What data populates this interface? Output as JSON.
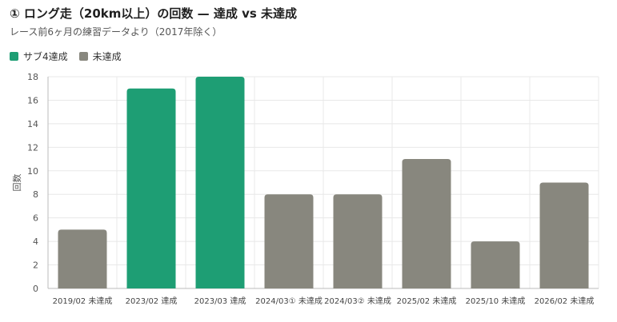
{
  "title": "① ロング走（20km以上）の回数 — 達成 vs 未達成",
  "subtitle": "レース前6ヶ月の練習データより（2017年除く）",
  "colors": {
    "achieved": "#1e9e74",
    "not_achieved": "#88877e",
    "grid": "#e8e8e8",
    "axis": "#bbbbbb"
  },
  "chart_data": {
    "type": "bar",
    "ylabel": "回数",
    "xlabel": "",
    "ylim": [
      0,
      18
    ],
    "yticks": [
      "0",
      "2",
      "4",
      "6",
      "8",
      "10",
      "12",
      "14",
      "16",
      "18"
    ],
    "legend": [
      {
        "name": "サブ4達成",
        "status": "achieved"
      },
      {
        "name": "未達成",
        "status": "not_achieved"
      }
    ],
    "categories": [
      "2019/02 未達成",
      "2023/02 達成",
      "2023/03 達成",
      "2024/03① 未達成",
      "2024/03② 未達成",
      "2025/02 未達成",
      "2025/10 未達成",
      "2026/02 未達成"
    ],
    "values": [
      5,
      17,
      18,
      8,
      8,
      11,
      4,
      9
    ],
    "status": [
      "not_achieved",
      "achieved",
      "achieved",
      "not_achieved",
      "not_achieved",
      "not_achieved",
      "not_achieved",
      "not_achieved"
    ]
  }
}
